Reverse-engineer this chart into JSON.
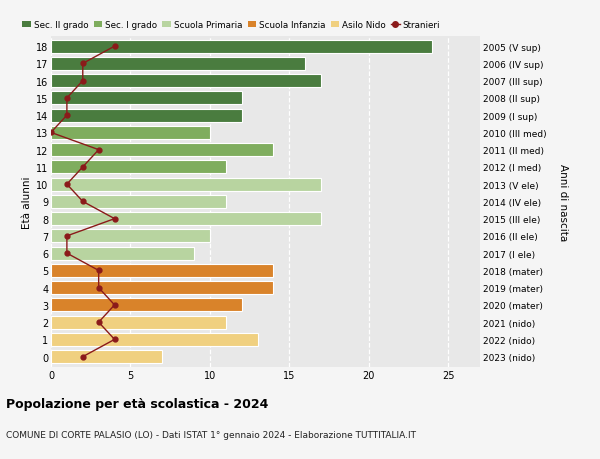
{
  "ages": [
    18,
    17,
    16,
    15,
    14,
    13,
    12,
    11,
    10,
    9,
    8,
    7,
    6,
    5,
    4,
    3,
    2,
    1,
    0
  ],
  "bar_values": [
    24,
    16,
    17,
    12,
    12,
    10,
    14,
    11,
    17,
    11,
    17,
    10,
    9,
    14,
    14,
    12,
    11,
    13,
    7
  ],
  "bar_colors": [
    "#4a7c3f",
    "#4a7c3f",
    "#4a7c3f",
    "#4a7c3f",
    "#4a7c3f",
    "#7fad5e",
    "#7fad5e",
    "#7fad5e",
    "#b8d4a0",
    "#b8d4a0",
    "#b8d4a0",
    "#b8d4a0",
    "#b8d4a0",
    "#d9832a",
    "#d9832a",
    "#d9832a",
    "#f0d080",
    "#f0d080",
    "#f0d080"
  ],
  "right_labels": [
    "2005 (V sup)",
    "2006 (IV sup)",
    "2007 (III sup)",
    "2008 (II sup)",
    "2009 (I sup)",
    "2010 (III med)",
    "2011 (II med)",
    "2012 (I med)",
    "2013 (V ele)",
    "2014 (IV ele)",
    "2015 (III ele)",
    "2016 (II ele)",
    "2017 (I ele)",
    "2018 (mater)",
    "2019 (mater)",
    "2020 (mater)",
    "2021 (nido)",
    "2022 (nido)",
    "2023 (nido)"
  ],
  "stranieri_values": [
    4,
    2,
    2,
    1,
    1,
    0,
    3,
    2,
    1,
    2,
    4,
    1,
    1,
    3,
    3,
    4,
    3,
    4,
    2
  ],
  "stranieri_color": "#8b1a1a",
  "legend_labels": [
    "Sec. II grado",
    "Sec. I grado",
    "Scuola Primaria",
    "Scuola Infanzia",
    "Asilo Nido",
    "Stranieri"
  ],
  "legend_colors": [
    "#4a7c3f",
    "#7fad5e",
    "#b8d4a0",
    "#d9832a",
    "#f0d080",
    "#8b1a1a"
  ],
  "ylabel_left": "Età alunni",
  "ylabel_right": "Anni di nascita",
  "title": "Popolazione per età scolastica - 2024",
  "subtitle": "COMUNE DI CORTE PALASIO (LO) - Dati ISTAT 1° gennaio 2024 - Elaborazione TUTTITALIA.IT",
  "xlim": [
    0,
    27
  ],
  "xticks": [
    0,
    5,
    10,
    15,
    20,
    25
  ],
  "background_color": "#f5f5f5",
  "bar_background": "#e8e8e8",
  "grid_color": "#ffffff",
  "bar_height": 0.75,
  "bar_edgecolor": "white",
  "bar_linewidth": 0.8
}
